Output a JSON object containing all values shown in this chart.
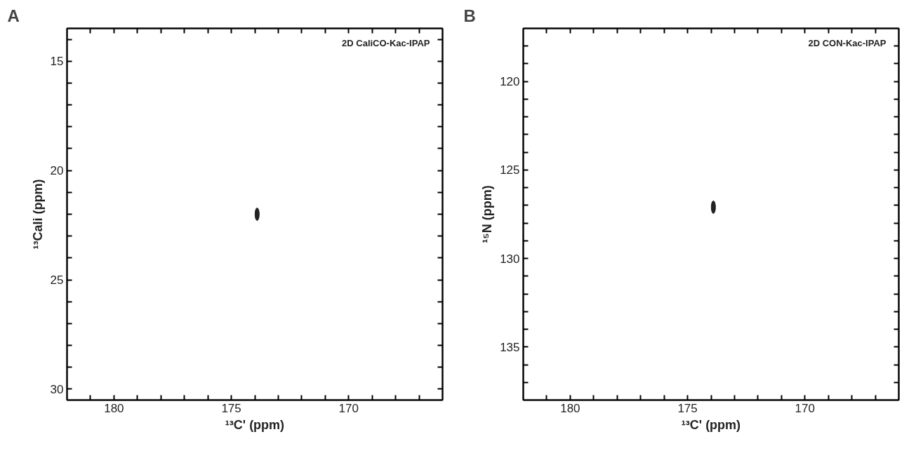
{
  "chart_data": [
    {
      "type": "scatter",
      "title": "A",
      "annotations": [
        "2D CaliCO-Kac-IPAP"
      ],
      "xlabel": "¹³C' (ppm)",
      "ylabel": "¹³Cali (ppm)",
      "x": [
        173.9
      ],
      "series": [
        {
          "color": "#222222",
          "values": [
            22.0
          ]
        }
      ],
      "xlim": [
        182,
        166
      ],
      "ylim": [
        30.5,
        13.5
      ],
      "xticks": [
        {
          "value": 181,
          "label": null
        },
        180,
        {
          "value": 179,
          "label": null
        },
        {
          "value": 178,
          "label": null
        },
        {
          "value": 177,
          "label": null
        },
        {
          "value": 176,
          "label": null
        },
        175,
        {
          "value": 174,
          "label": null
        },
        {
          "value": 173,
          "label": null
        },
        {
          "value": 172,
          "label": null
        },
        {
          "value": 171,
          "label": null
        },
        170,
        {
          "value": 169,
          "label": null
        },
        {
          "value": 168,
          "label": null
        },
        {
          "value": 167,
          "label": null
        }
      ],
      "yticks": [
        {
          "value": 14,
          "label": null
        },
        15,
        {
          "value": 16,
          "label": null
        },
        {
          "value": 17,
          "label": null
        },
        {
          "value": 18,
          "label": null
        },
        {
          "value": 19,
          "label": null
        },
        20,
        {
          "value": 21,
          "label": null
        },
        {
          "value": 22,
          "label": null
        },
        {
          "value": 23,
          "label": null
        },
        {
          "value": 24,
          "label": null
        },
        25,
        {
          "value": 26,
          "label": null
        },
        {
          "value": 27,
          "label": null
        },
        {
          "value": 28,
          "label": null
        },
        {
          "value": 29,
          "label": null
        },
        30
      ]
    },
    {
      "type": "scatter",
      "title": "B",
      "annotations": [
        "2D CON-Kac-IPAP"
      ],
      "xlabel": "¹³C' (ppm)",
      "ylabel": "¹⁵N (ppm)",
      "x": [
        173.9
      ],
      "series": [
        {
          "color": "#222222",
          "values": [
            127.1
          ]
        }
      ],
      "xlim": [
        182,
        166
      ],
      "ylim": [
        138,
        117
      ],
      "xticks": [
        {
          "value": 181,
          "label": null
        },
        180,
        {
          "value": 179,
          "label": null
        },
        {
          "value": 178,
          "label": null
        },
        {
          "value": 177,
          "label": null
        },
        {
          "value": 176,
          "label": null
        },
        175,
        {
          "value": 174,
          "label": null
        },
        {
          "value": 173,
          "label": null
        },
        {
          "value": 172,
          "label": null
        },
        {
          "value": 171,
          "label": null
        },
        170,
        {
          "value": 169,
          "label": null
        },
        {
          "value": 168,
          "label": null
        },
        {
          "value": 167,
          "label": null
        }
      ],
      "yticks": [
        {
          "value": 118,
          "label": null
        },
        {
          "value": 119,
          "label": null
        },
        120,
        {
          "value": 121,
          "label": null
        },
        {
          "value": 122,
          "label": null
        },
        {
          "value": 123,
          "label": null
        },
        {
          "value": 124,
          "label": null
        },
        125,
        {
          "value": 126,
          "label": null
        },
        {
          "value": 127,
          "label": null
        },
        {
          "value": 128,
          "label": null
        },
        {
          "value": 129,
          "label": null
        },
        130,
        {
          "value": 131,
          "label": null
        },
        {
          "value": 132,
          "label": null
        },
        {
          "value": 133,
          "label": null
        },
        {
          "value": 134,
          "label": null
        },
        135,
        {
          "value": 136,
          "label": null
        },
        {
          "value": 137,
          "label": null
        }
      ]
    }
  ]
}
